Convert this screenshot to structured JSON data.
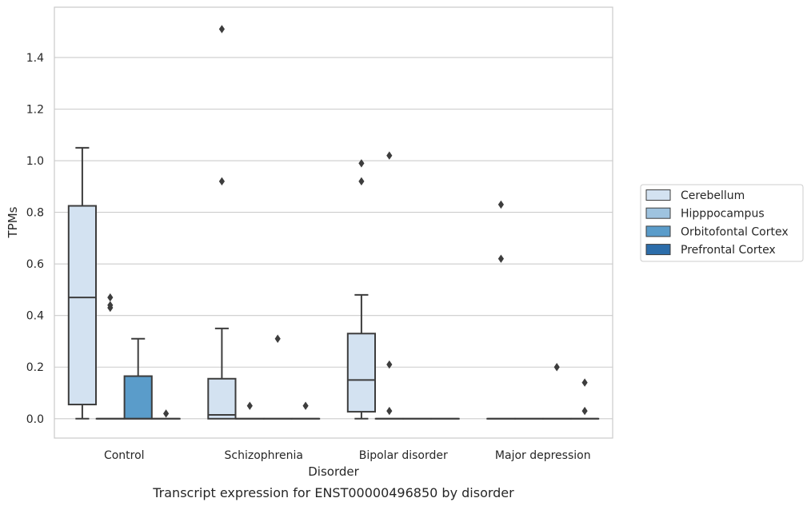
{
  "chart_data": {
    "type": "box",
    "title": "",
    "caption": "Transcript expression for ENST00000496850 by disorder",
    "xlabel": "Disorder",
    "ylabel": "TPMs",
    "ylim": [
      -0.075,
      1.595
    ],
    "yticks": [
      0.0,
      0.2,
      0.4,
      0.6,
      0.8,
      1.0,
      1.2,
      1.4
    ],
    "ytick_labels": [
      "0.0",
      "0.2",
      "0.4",
      "0.6",
      "0.8",
      "1.0",
      "1.2",
      "1.4"
    ],
    "grid": "horizontal",
    "legend_position": "right",
    "categories": [
      "Control",
      "Schizophrenia",
      "Bipolar disorder",
      "Major depression"
    ],
    "series": [
      {
        "name": "Cerebellum",
        "color": "#d3e2f1",
        "boxes": [
          {
            "q1": 0.055,
            "median": 0.47,
            "q3": 0.825,
            "whisker_low": 0.0,
            "whisker_high": 1.05,
            "outliers": []
          },
          {
            "q1": 0.0,
            "median": 0.015,
            "q3": 0.155,
            "whisker_low": 0.0,
            "whisker_high": 0.35,
            "outliers": [
              0.92,
              1.51
            ]
          },
          {
            "q1": 0.027,
            "median": 0.15,
            "q3": 0.33,
            "whisker_low": 0.0,
            "whisker_high": 0.48,
            "outliers": [
              0.92,
              0.99
            ]
          },
          {
            "q1": 0.0,
            "median": 0.0,
            "q3": 0.0,
            "whisker_low": 0.0,
            "whisker_high": 0.0,
            "outliers": [
              0.62,
              0.83
            ]
          }
        ]
      },
      {
        "name": "Hipppocampus",
        "color": "#9ec3df",
        "boxes": [
          {
            "q1": 0.0,
            "median": 0.0,
            "q3": 0.0,
            "whisker_low": 0.0,
            "whisker_high": 0.0,
            "outliers": [
              0.43,
              0.44,
              0.47
            ]
          },
          {
            "q1": 0.0,
            "median": 0.0,
            "q3": 0.0,
            "whisker_low": 0.0,
            "whisker_high": 0.0,
            "outliers": [
              0.05
            ]
          },
          {
            "q1": 0.0,
            "median": 0.0,
            "q3": 0.0,
            "whisker_low": 0.0,
            "whisker_high": 0.0,
            "outliers": [
              0.03,
              0.21,
              1.02
            ]
          },
          {
            "q1": 0.0,
            "median": 0.0,
            "q3": 0.0,
            "whisker_low": 0.0,
            "whisker_high": 0.0,
            "outliers": []
          }
        ]
      },
      {
        "name": "Orbitofontal Cortex",
        "color": "#5a9cca",
        "boxes": [
          {
            "q1": 0.0,
            "median": 0.0,
            "q3": 0.165,
            "whisker_low": 0.0,
            "whisker_high": 0.31,
            "outliers": []
          },
          {
            "q1": 0.0,
            "median": 0.0,
            "q3": 0.0,
            "whisker_low": 0.0,
            "whisker_high": 0.0,
            "outliers": [
              0.31
            ]
          },
          {
            "q1": 0.0,
            "median": 0.0,
            "q3": 0.0,
            "whisker_low": 0.0,
            "whisker_high": 0.0,
            "outliers": []
          },
          {
            "q1": 0.0,
            "median": 0.0,
            "q3": 0.0,
            "whisker_low": 0.0,
            "whisker_high": 0.0,
            "outliers": [
              0.2
            ]
          }
        ]
      },
      {
        "name": "Prefrontal Cortex",
        "color": "#2c6daa",
        "boxes": [
          {
            "q1": 0.0,
            "median": 0.0,
            "q3": 0.0,
            "whisker_low": 0.0,
            "whisker_high": 0.0,
            "outliers": [
              0.02
            ]
          },
          {
            "q1": 0.0,
            "median": 0.0,
            "q3": 0.0,
            "whisker_low": 0.0,
            "whisker_high": 0.0,
            "outliers": [
              0.05
            ]
          },
          {
            "q1": 0.0,
            "median": 0.0,
            "q3": 0.0,
            "whisker_low": 0.0,
            "whisker_high": 0.0,
            "outliers": []
          },
          {
            "q1": 0.0,
            "median": 0.0,
            "q3": 0.0,
            "whisker_low": 0.0,
            "whisker_high": 0.0,
            "outliers": [
              0.03,
              0.14
            ]
          }
        ]
      }
    ],
    "colors": {
      "grid": "#cccccc",
      "frame": "#cccccc",
      "line": "#3d3d3d"
    }
  }
}
